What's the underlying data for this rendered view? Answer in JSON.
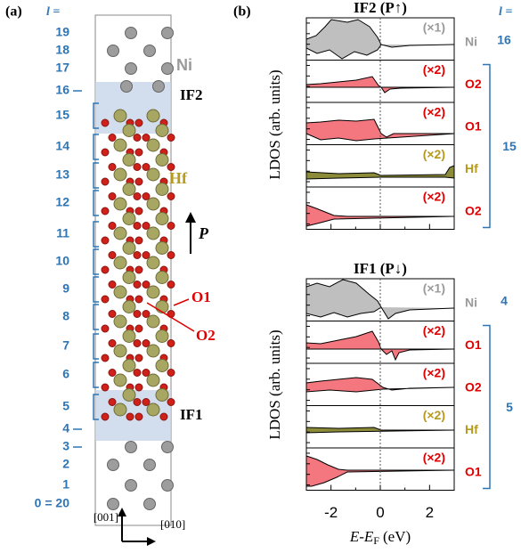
{
  "panel_a": {
    "label": "(a)",
    "layer_header": "l =",
    "layers": [
      "19",
      "18",
      "17",
      "16",
      "15",
      "14",
      "13",
      "12",
      "11",
      "10",
      "9",
      "8",
      "7",
      "6",
      "5",
      "4",
      "3",
      "2",
      "1",
      "0 = 20"
    ],
    "labels": {
      "ni": "Ni",
      "if2": "IF2",
      "hf": "Hf",
      "p": "P",
      "o1": "O1",
      "o2": "O2",
      "if1": "IF1"
    },
    "axes": [
      "[001]",
      "[010]"
    ]
  },
  "panel_b": {
    "label": "(b)",
    "layer_header": "l =",
    "ylabel": "LDOS (arb. units)",
    "xlabel": {
      "main": "E-E",
      "sub": "F",
      "unit": "(eV)"
    },
    "xlim": [
      -3,
      3
    ],
    "xticks": [
      -2,
      0,
      2
    ],
    "plots": [
      {
        "title": "IF2 (P↑)",
        "rows": [
          {
            "element": "Ni",
            "scale": "(×1)"
          },
          {
            "element": "O2",
            "scale": "(×2)"
          },
          {
            "element": "O1",
            "scale": "(×2)"
          },
          {
            "element": "Hf",
            "scale": "(×2)"
          },
          {
            "element": "O2",
            "scale": "(×2)"
          }
        ],
        "layers": [
          "16",
          "15"
        ]
      },
      {
        "title": "IF1 (P↓)",
        "rows": [
          {
            "element": "Ni",
            "scale": "(×1)"
          },
          {
            "element": "O1",
            "scale": "(×2)"
          },
          {
            "element": "O2",
            "scale": "(×2)"
          },
          {
            "element": "Hf",
            "scale": "(×2)"
          },
          {
            "element": "O1",
            "scale": "(×2)"
          }
        ],
        "layers": [
          "4",
          "5"
        ]
      }
    ]
  }
}
